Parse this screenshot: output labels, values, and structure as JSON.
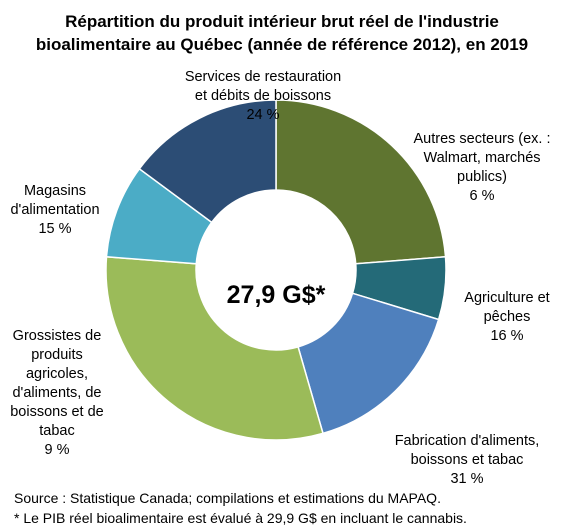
{
  "chart_data": {
    "type": "donut",
    "title_lines": [
      "Répartition du produit intérieur brut réel de l'industrie",
      "bioalimentaire au Québec (année de référence 2012), en 2019"
    ],
    "center_label": "27,9 G$*",
    "legend": "none",
    "slices": [
      {
        "label_lines": [
          "Services de restauration",
          "et débits de boissons"
        ],
        "value_label": "24 %",
        "value": 24,
        "color": "#5f7530"
      },
      {
        "label_lines": [
          "Autres secteurs (ex. :",
          "Walmart, marchés",
          "publics)"
        ],
        "value_label": "6 %",
        "value": 6,
        "color": "#246a78"
      },
      {
        "label_lines": [
          "Agriculture et",
          "pêches"
        ],
        "value_label": "16 %",
        "value": 16,
        "color": "#4f80bd"
      },
      {
        "label_lines": [
          "Fabrication d'aliments,",
          "boissons et tabac"
        ],
        "value_label": "31 %",
        "value": 31,
        "color": "#9bbb59"
      },
      {
        "label_lines": [
          "Grossistes de",
          "produits",
          "agricoles,",
          "d'aliments, de",
          "boissons et de",
          "tabac"
        ],
        "value_label": "9 %",
        "value": 9,
        "color": "#4bacc6"
      },
      {
        "label_lines": [
          "Magasins",
          "d'alimentation"
        ],
        "value_label": "15 %",
        "value": 15,
        "color": "#2c4d75"
      }
    ]
  },
  "footnotes": {
    "source": "Source : Statistique Canada; compilations et estimations du MAPAQ.",
    "note": "* Le PIB réel bioalimentaire est évalué à 29,9 G$ en incluant le cannabis."
  }
}
